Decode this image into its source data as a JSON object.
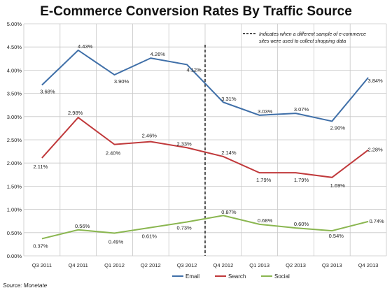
{
  "chart_data": {
    "type": "line",
    "title": "E-Commerce Conversion Rates By Traffic Source",
    "source": "Source: Monetate",
    "categories": [
      "Q3 2011",
      "Q4 2011",
      "Q1 2012",
      "Q2 2012",
      "Q3 2012",
      "Q4 2012",
      "Q1 2013",
      "Q2 2013",
      "Q3 2013",
      "Q4 2013"
    ],
    "y_ticks": [
      "0.00%",
      "0.50%",
      "1.00%",
      "1.50%",
      "2.00%",
      "2.50%",
      "3.00%",
      "3.50%",
      "4.00%",
      "4.50%",
      "5.00%"
    ],
    "ylim": [
      0,
      5
    ],
    "grid": true,
    "legend_position": "bottom",
    "annotation": {
      "line1": "Indicates when a different sample of e-commerce",
      "line2": "sites were used to collect shopping data",
      "after_category": "Q3 2012"
    },
    "series": [
      {
        "name": "Email",
        "color": "#3f6fa8",
        "values": [
          3.68,
          4.43,
          3.9,
          4.26,
          4.12,
          3.31,
          3.03,
          3.07,
          2.9,
          3.84
        ],
        "labels": [
          "3.68%",
          "4.43%",
          "3.90%",
          "4.26%",
          "4.12%",
          "3.31%",
          "3.03%",
          "3.07%",
          "2.90%",
          "3.84%"
        ]
      },
      {
        "name": "Search",
        "color": "#c0393b",
        "values": [
          2.11,
          2.98,
          2.4,
          2.46,
          2.33,
          2.14,
          1.79,
          1.79,
          1.69,
          2.28
        ],
        "labels": [
          "2.11%",
          "2.98%",
          "2.40%",
          "2.46%",
          "2.33%",
          "2.14%",
          "1.79%",
          "1.79%",
          "1.69%",
          "2.28%"
        ]
      },
      {
        "name": "Social",
        "color": "#8ab650",
        "values": [
          0.37,
          0.56,
          0.49,
          0.61,
          0.73,
          0.87,
          0.68,
          0.6,
          0.54,
          0.74
        ],
        "labels": [
          "0.37%",
          "0.56%",
          "0.49%",
          "0.61%",
          "0.73%",
          "0.87%",
          "0.68%",
          "0.60%",
          "0.54%",
          "0.74%"
        ]
      }
    ]
  }
}
